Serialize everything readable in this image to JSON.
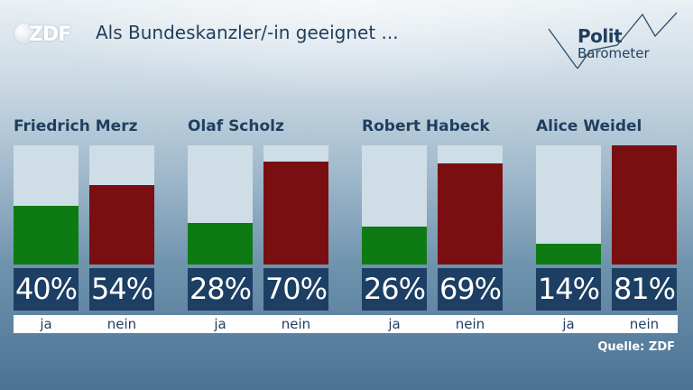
{
  "header": {
    "logo_text": "ZDF",
    "title": "Als Bundeskanzler/-in geeignet ...",
    "brand_line1": "Polit",
    "brand_line2": "Barometer"
  },
  "colors": {
    "ja": "#0e7a14",
    "nein": "#7a0f12",
    "bar_bg": "#cfdde6",
    "pct_bg": "#1c3f63"
  },
  "chart_data": {
    "type": "bar",
    "title": "Als Bundeskanzler/-in geeignet ...",
    "categories": [
      "Friedrich Merz",
      "Olaf Scholz",
      "Robert Habeck",
      "Alice Weidel"
    ],
    "series": [
      {
        "name": "ja",
        "values": [
          40,
          28,
          26,
          14
        ]
      },
      {
        "name": "nein",
        "values": [
          54,
          70,
          69,
          81
        ]
      }
    ],
    "value_labels": {
      "ja": [
        "40%",
        "28%",
        "26%",
        "14%"
      ],
      "nein": [
        "54%",
        "70%",
        "69%",
        "81%"
      ]
    },
    "ylim": [
      0,
      81
    ],
    "unit": "%"
  },
  "footer": {
    "source": "Quelle: ZDF"
  }
}
